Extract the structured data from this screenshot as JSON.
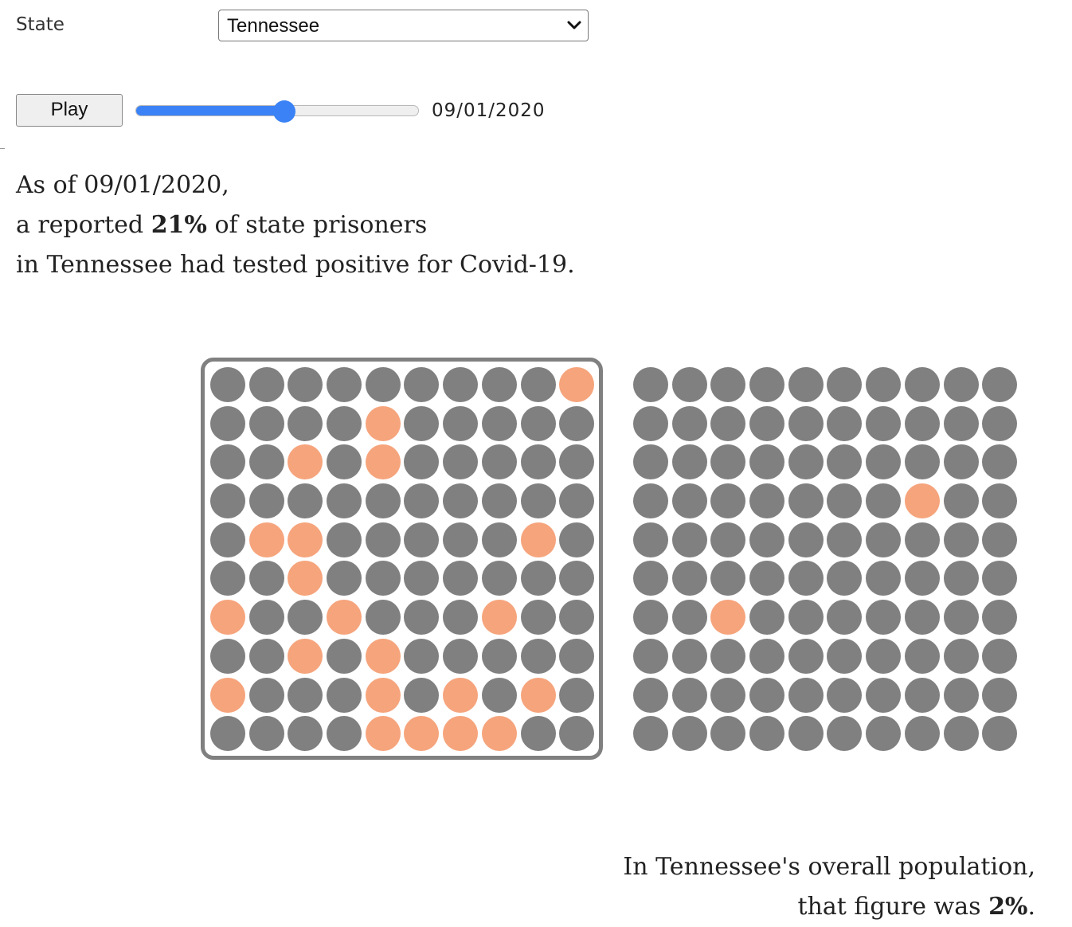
{
  "controls": {
    "state_label": "State",
    "state_selected": "Tennessee",
    "play_label": "Play",
    "date": "09/01/2020",
    "slider_progress": 0.525
  },
  "headline": {
    "line1": "As of 09/01/2020,",
    "line2_pre": "a reported ",
    "line2_pct": "21%",
    "line2_post": " of state prisoners",
    "line3": "in Tennessee had tested positive for Covid-19."
  },
  "footer": {
    "line1": "In Tennessee's overall population,",
    "line2_pre": "that figure was ",
    "line2_pct": "2%",
    "line2_post": "."
  },
  "colors": {
    "positive": "#f6a47c",
    "negative": "#808080",
    "accent": "#3b82f6"
  },
  "waffles": {
    "prison": {
      "rows": [
        [
          0,
          0,
          0,
          0,
          0,
          0,
          0,
          0,
          0,
          1
        ],
        [
          0,
          0,
          0,
          0,
          1,
          0,
          0,
          0,
          0,
          0
        ],
        [
          0,
          0,
          1,
          0,
          1,
          0,
          0,
          0,
          0,
          0
        ],
        [
          0,
          0,
          0,
          0,
          0,
          0,
          0,
          0,
          0,
          0
        ],
        [
          0,
          1,
          1,
          0,
          0,
          0,
          0,
          0,
          1,
          0
        ],
        [
          0,
          0,
          1,
          0,
          0,
          0,
          0,
          0,
          0,
          0
        ],
        [
          1,
          0,
          0,
          1,
          0,
          0,
          0,
          1,
          0,
          0
        ],
        [
          0,
          0,
          1,
          0,
          1,
          0,
          0,
          0,
          0,
          0
        ],
        [
          1,
          0,
          0,
          0,
          1,
          0,
          1,
          0,
          1,
          0
        ],
        [
          0,
          0,
          0,
          0,
          1,
          1,
          1,
          1,
          0,
          0
        ]
      ]
    },
    "population": {
      "rows": [
        [
          0,
          0,
          0,
          0,
          0,
          0,
          0,
          0,
          0,
          0
        ],
        [
          0,
          0,
          0,
          0,
          0,
          0,
          0,
          0,
          0,
          0
        ],
        [
          0,
          0,
          0,
          0,
          0,
          0,
          0,
          0,
          0,
          0
        ],
        [
          0,
          0,
          0,
          0,
          0,
          0,
          0,
          1,
          0,
          0
        ],
        [
          0,
          0,
          0,
          0,
          0,
          0,
          0,
          0,
          0,
          0
        ],
        [
          0,
          0,
          0,
          0,
          0,
          0,
          0,
          0,
          0,
          0
        ],
        [
          0,
          0,
          1,
          0,
          0,
          0,
          0,
          0,
          0,
          0
        ],
        [
          0,
          0,
          0,
          0,
          0,
          0,
          0,
          0,
          0,
          0
        ],
        [
          0,
          0,
          0,
          0,
          0,
          0,
          0,
          0,
          0,
          0
        ],
        [
          0,
          0,
          0,
          0,
          0,
          0,
          0,
          0,
          0,
          0
        ]
      ]
    }
  }
}
